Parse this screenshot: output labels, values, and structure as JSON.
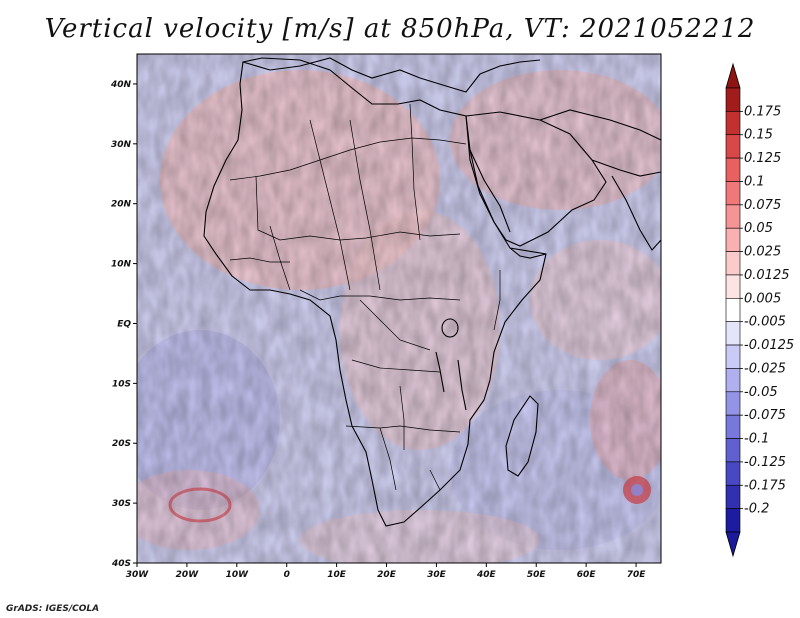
{
  "title": "Vertical velocity [m/s] at 850hPa, VT: 2021052212",
  "footer": "GrADS: IGES/COLA",
  "colorbar": {
    "labels": [
      "0.175",
      "0.15",
      "0.125",
      "0.1",
      "0.075",
      "0.05",
      "0.025",
      "0.0125",
      "0.005",
      "-0.005",
      "-0.0125",
      "-0.025",
      "-0.05",
      "-0.075",
      "-0.1",
      "-0.125",
      "-0.175",
      "-0.2"
    ],
    "colors": [
      "#a21c1c",
      "#c33030",
      "#d84848",
      "#e86060",
      "#f07878",
      "#f59494",
      "#f8b0b0",
      "#fbcaca",
      "#fde4e4",
      "#ffffff",
      "#e4e4fb",
      "#cacaf6",
      "#b0b0ef",
      "#9494e6",
      "#7878dc",
      "#6060d0",
      "#4848c2",
      "#3030b0",
      "#1c1ca0"
    ],
    "top_arrow_color": "#8f1414",
    "bottom_arrow_color": "#1a1a9a"
  },
  "axes": {
    "lon_labels": [
      "30W",
      "20W",
      "10W",
      "0",
      "10E",
      "20E",
      "30E",
      "40E",
      "50E",
      "60E",
      "70E"
    ],
    "lat_labels": [
      "40N",
      "30N",
      "20N",
      "10N",
      "EQ",
      "10S",
      "20S",
      "30S",
      "40S"
    ],
    "lon_range": [
      -30,
      75
    ],
    "lat_range": [
      -40,
      45
    ]
  },
  "field": {
    "variable": "Vertical velocity",
    "units": "m/s",
    "level": "850hPa",
    "valid_time": "2021052212"
  }
}
